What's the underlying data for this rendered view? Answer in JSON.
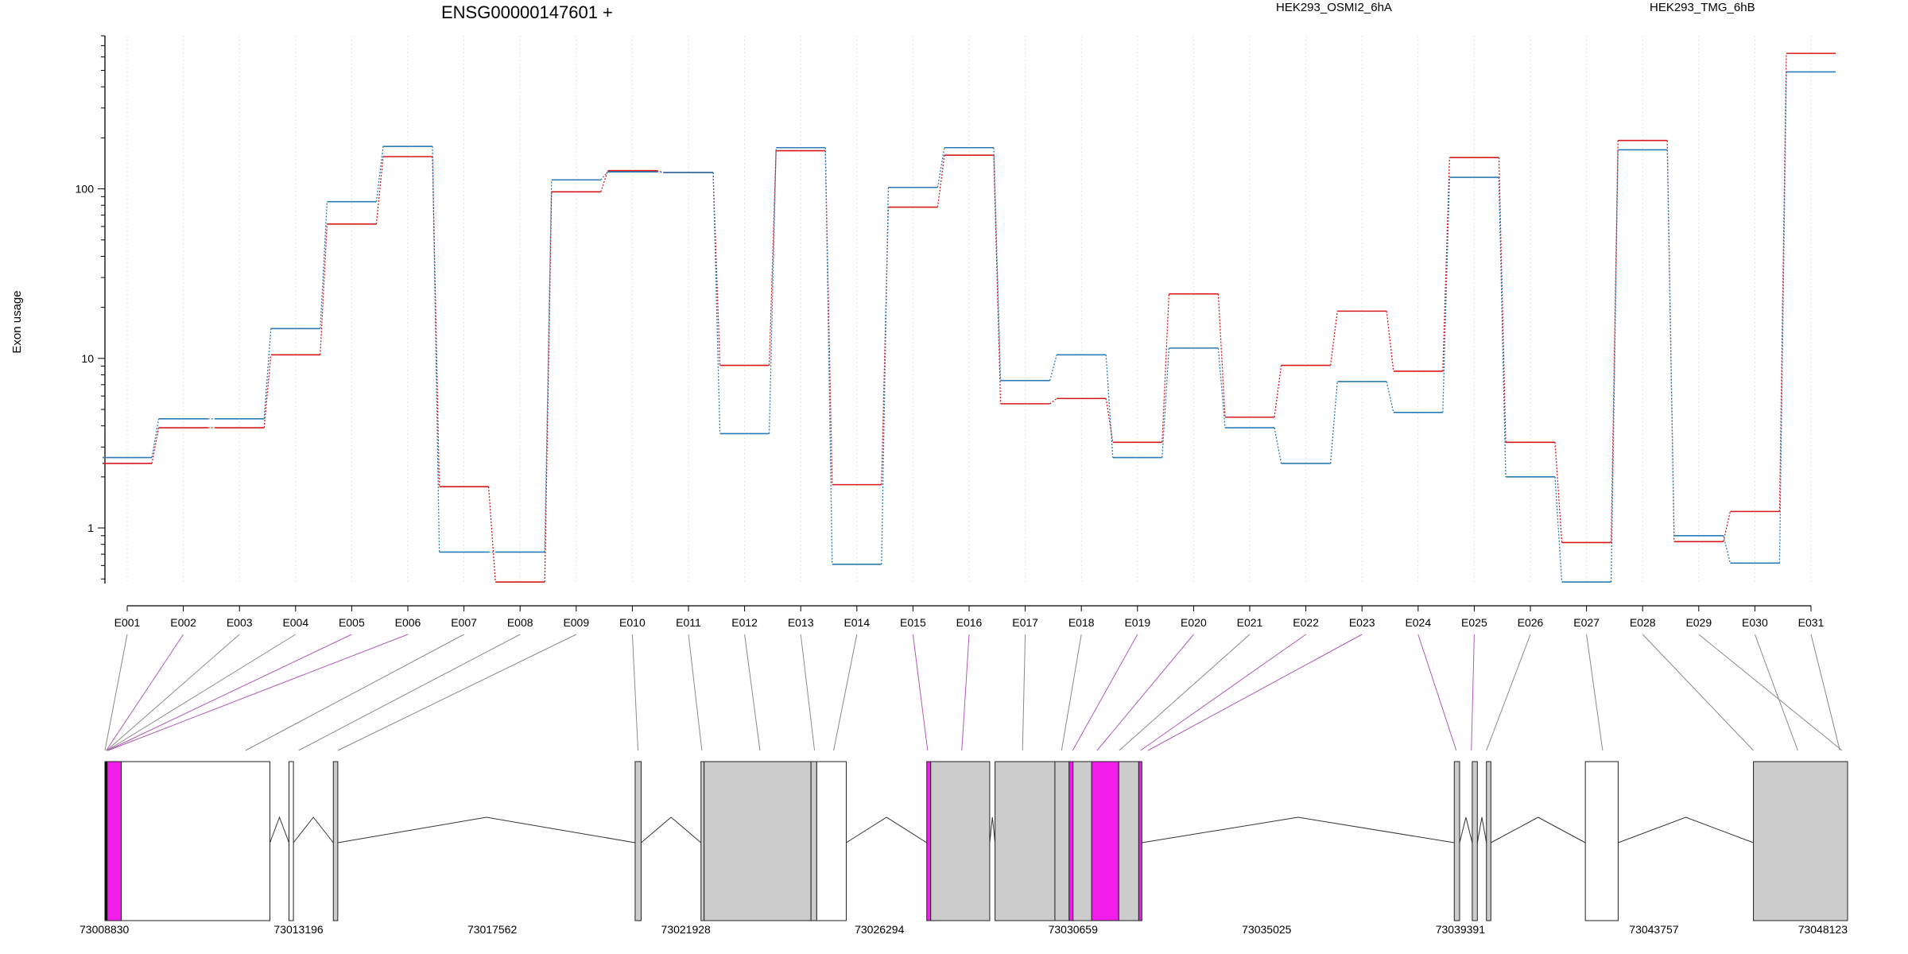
{
  "chart_data": {
    "type": "line",
    "title": "ENSG00000147601 +",
    "ylabel": "Exon usage",
    "xlabel": "",
    "y_scale": "log",
    "ylim": [
      0.45,
      800
    ],
    "y_ticks": [
      1,
      10,
      100
    ],
    "grid": "vertical dotted",
    "legend_placement": "top-right",
    "categories": [
      "E001",
      "E002",
      "E003",
      "E004",
      "E005",
      "E006",
      "E007",
      "E008",
      "E009",
      "E010",
      "E011",
      "E012",
      "E013",
      "E014",
      "E015",
      "E016",
      "E017",
      "E018",
      "E019",
      "E020",
      "E021",
      "E022",
      "E023",
      "E024",
      "E025",
      "E026",
      "E027",
      "E028",
      "E029",
      "E030",
      "E031"
    ],
    "series": [
      {
        "name": "HEK293_OSMI2_6hA",
        "color": "#d7191c",
        "values": [
          2.4,
          3.9,
          3.9,
          10.5,
          62,
          155,
          1.75,
          0.48,
          96,
          128,
          125,
          9.1,
          168,
          1.8,
          78,
          158,
          5.4,
          5.8,
          3.2,
          24,
          4.5,
          9.1,
          19,
          8.4,
          153,
          3.2,
          0.82,
          193,
          0.83,
          1.25,
          630
        ]
      },
      {
        "name": "HEK293_TMG_6hB",
        "color": "#2c7bb6",
        "values": [
          2.6,
          4.4,
          4.4,
          15,
          84,
          178,
          0.72,
          0.72,
          113,
          126,
          125,
          3.6,
          175,
          0.61,
          102,
          175,
          7.4,
          10.5,
          2.6,
          11.5,
          3.9,
          2.4,
          7.3,
          4.8,
          117,
          2.0,
          0.48,
          170,
          0.9,
          0.62,
          490
        ]
      }
    ],
    "gene_model": {
      "coordinate_labels": [
        "73008830",
        "73013196",
        "73017562",
        "73021928",
        "73026294",
        "73030659",
        "73035025",
        "73039391",
        "73043757",
        "73048123"
      ],
      "range": [
        73008830,
        73048123
      ],
      "highlight_color": "#f21de8",
      "exon_fill_color": "#cccccc",
      "highlighted_exons": [
        "E002",
        "E005",
        "E006",
        "E015",
        "E016",
        "E019",
        "E020",
        "E022",
        "E023",
        "E024",
        "E025"
      ]
    }
  }
}
